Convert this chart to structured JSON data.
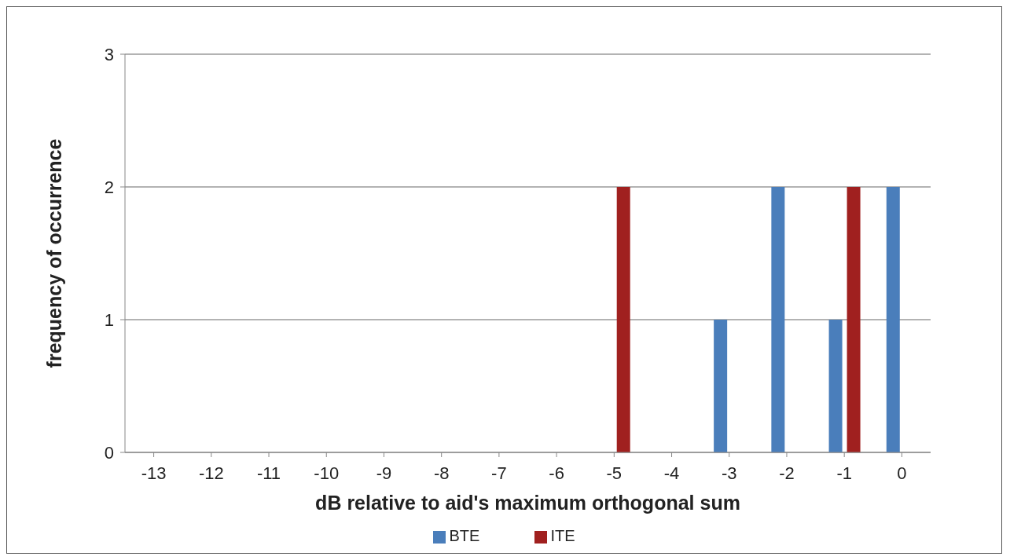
{
  "chart_data": {
    "type": "bar",
    "xlabel": "dB relative to aid's maximum orthogonal sum",
    "ylabel": "frequency of occurrence",
    "categories": [
      "-13",
      "-12",
      "-11",
      "-10",
      "-9",
      "-8",
      "-7",
      "-6",
      "-5",
      "-4",
      "-3",
      "-2",
      "-1",
      "0"
    ],
    "series": [
      {
        "name": "BTE",
        "color": "#4a7ebb",
        "values": [
          0,
          0,
          0,
          0,
          0,
          0,
          0,
          0,
          0,
          0,
          1,
          2,
          1,
          2
        ]
      },
      {
        "name": "ITE",
        "color": "#a0201f",
        "values": [
          0,
          0,
          0,
          0,
          0,
          0,
          0,
          0,
          2,
          0,
          0,
          0,
          2,
          0
        ]
      }
    ],
    "ylim": [
      0,
      3
    ],
    "yticks": [
      0,
      1,
      2,
      3
    ],
    "grid": "y",
    "legend": "bottom"
  }
}
